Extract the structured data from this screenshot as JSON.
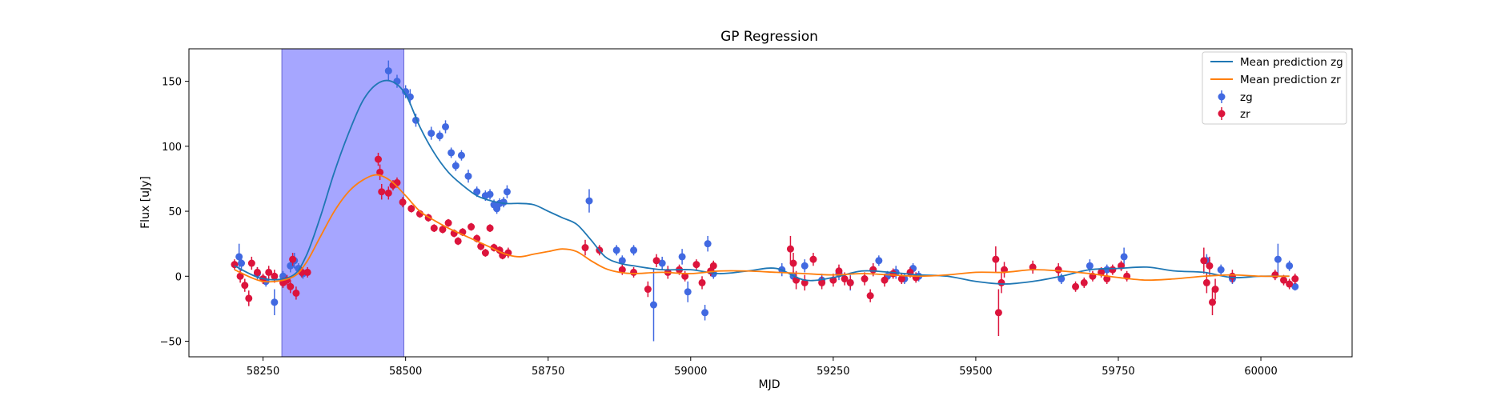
{
  "chart_data": {
    "type": "scatter",
    "title": "GP Regression",
    "xlabel": "MJD",
    "ylabel": "Flux [uJy]",
    "xlim": [
      58120,
      60160
    ],
    "ylim": [
      -62,
      175
    ],
    "xticks": [
      58250,
      58500,
      58750,
      59000,
      59250,
      59500,
      59750,
      60000
    ],
    "yticks": [
      -50,
      0,
      50,
      100,
      150
    ],
    "grid": false,
    "legend_position": "top-right",
    "shaded_region": {
      "x_range": [
        58283,
        58497
      ],
      "color": "#a6a6ff"
    },
    "series": [
      {
        "name": "Mean prediction zg",
        "kind": "line",
        "color": "#1f77b4",
        "x": [
          58200,
          58250,
          58300,
          58325,
          58350,
          58375,
          58400,
          58425,
          58450,
          58475,
          58500,
          58525,
          58550,
          58575,
          58600,
          58625,
          58650,
          58675,
          58700,
          58725,
          58750,
          58775,
          58800,
          58825,
          58850,
          58875,
          58900,
          58950,
          59000,
          59050,
          59100,
          59150,
          59200,
          59250,
          59300,
          59350,
          59400,
          59450,
          59500,
          59550,
          59600,
          59650,
          59700,
          59750,
          59800,
          59850,
          59900,
          59950,
          60000,
          60050
        ],
        "y": [
          8,
          -2,
          0,
          15,
          45,
          80,
          110,
          135,
          148,
          150,
          140,
          115,
          95,
          80,
          70,
          62,
          58,
          56,
          56,
          55,
          50,
          45,
          40,
          28,
          15,
          10,
          8,
          5,
          5,
          2,
          4,
          6,
          -3,
          -1,
          4,
          3,
          1,
          0,
          -4,
          -6,
          -4,
          0,
          5,
          6,
          7,
          4,
          3,
          -1,
          0,
          0
        ]
      },
      {
        "name": "Mean prediction zr",
        "kind": "line",
        "color": "#ff7f0e",
        "x": [
          58200,
          58250,
          58300,
          58325,
          58350,
          58375,
          58400,
          58425,
          58450,
          58475,
          58500,
          58525,
          58550,
          58575,
          58600,
          58625,
          58650,
          58675,
          58700,
          58725,
          58750,
          58775,
          58800,
          58825,
          58850,
          58875,
          58900,
          58950,
          59000,
          59050,
          59100,
          59150,
          59200,
          59250,
          59300,
          59350,
          59400,
          59450,
          59500,
          59550,
          59600,
          59650,
          59700,
          59750,
          59800,
          59850,
          59900,
          59950,
          60000,
          60050
        ],
        "y": [
          5,
          -4,
          -1,
          10,
          30,
          50,
          65,
          74,
          78,
          73,
          62,
          50,
          43,
          37,
          32,
          27,
          22,
          17,
          15,
          17,
          19,
          21,
          19,
          12,
          6,
          3,
          2,
          3,
          2,
          4,
          4,
          3,
          2,
          1,
          2,
          1,
          0,
          1,
          3,
          3,
          5,
          4,
          2,
          -1,
          -3,
          -2,
          0,
          1,
          0,
          0
        ]
      },
      {
        "name": "zg",
        "kind": "errorbar",
        "color": "#4169e1",
        "x": [
          58208,
          58212,
          58240,
          58255,
          58270,
          58285,
          58298,
          58305,
          58312,
          58320,
          58470,
          58485,
          58500,
          58508,
          58518,
          58545,
          58560,
          58570,
          58580,
          58588,
          58598,
          58610,
          58625,
          58640,
          58648,
          58655,
          58660,
          58665,
          58672,
          58678,
          58822,
          58870,
          58880,
          58900,
          58935,
          58950,
          58985,
          58995,
          59025,
          59030,
          59040,
          59160,
          59180,
          59200,
          59230,
          59260,
          59280,
          59320,
          59330,
          59345,
          59360,
          59375,
          59390,
          59400,
          59650,
          59700,
          59730,
          59760,
          59905,
          59930,
          59950,
          60030,
          60050,
          60060
        ],
        "y": [
          15,
          10,
          2,
          -4,
          -20,
          0,
          8,
          12,
          6,
          2,
          158,
          150,
          142,
          138,
          120,
          110,
          108,
          115,
          95,
          85,
          93,
          77,
          65,
          62,
          63,
          55,
          52,
          56,
          57,
          65,
          58,
          20,
          12,
          20,
          -22,
          10,
          15,
          -12,
          -28,
          25,
          2,
          5,
          0,
          8,
          -3,
          2,
          -5,
          5,
          12,
          0,
          3,
          -2,
          6,
          0,
          -2,
          8,
          5,
          15,
          12,
          5,
          -2,
          13,
          8,
          -8
        ],
        "err": [
          10,
          6,
          5,
          4,
          10,
          4,
          5,
          6,
          4,
          4,
          8,
          5,
          5,
          6,
          5,
          5,
          4,
          5,
          4,
          4,
          4,
          5,
          4,
          4,
          4,
          4,
          4,
          4,
          4,
          5,
          9,
          4,
          4,
          4,
          28,
          5,
          6,
          8,
          6,
          6,
          4,
          5,
          4,
          5,
          5,
          5,
          6,
          5,
          4,
          4,
          5,
          4,
          4,
          4,
          4,
          5,
          4,
          7,
          5,
          4,
          4,
          12,
          4,
          3
        ]
      },
      {
        "name": "zr",
        "kind": "errorbar",
        "color": "#dc143c",
        "x": [
          58200,
          58210,
          58218,
          58225,
          58230,
          58240,
          58250,
          58260,
          58270,
          58285,
          58292,
          58298,
          58302,
          58308,
          58318,
          58328,
          58452,
          58455,
          58458,
          58470,
          58478,
          58485,
          58495,
          58510,
          58525,
          58540,
          58550,
          58565,
          58575,
          58585,
          58592,
          58600,
          58615,
          58625,
          58632,
          58640,
          58648,
          58655,
          58665,
          58670,
          58680,
          58815,
          58840,
          58880,
          58900,
          58925,
          58940,
          58960,
          58980,
          58990,
          59010,
          59020,
          59035,
          59040,
          59175,
          59180,
          59185,
          59200,
          59215,
          59230,
          59250,
          59260,
          59270,
          59280,
          59305,
          59315,
          59320,
          59340,
          59355,
          59370,
          59385,
          59395,
          59535,
          59540,
          59545,
          59550,
          59600,
          59645,
          59675,
          59690,
          59705,
          59720,
          59730,
          59740,
          59755,
          59765,
          59900,
          59905,
          59910,
          59915,
          59920,
          59950,
          60025,
          60040,
          60050,
          60060
        ],
        "y": [
          9,
          0,
          -7,
          -17,
          10,
          3,
          -2,
          3,
          0,
          -5,
          -3,
          -8,
          13,
          -13,
          3,
          3,
          90,
          80,
          65,
          64,
          70,
          72,
          57,
          52,
          48,
          45,
          37,
          36,
          41,
          33,
          27,
          34,
          38,
          29,
          23,
          18,
          37,
          22,
          20,
          16,
          18,
          22,
          20,
          5,
          3,
          -10,
          12,
          3,
          5,
          0,
          9,
          -5,
          4,
          8,
          21,
          10,
          -3,
          -5,
          13,
          -5,
          -3,
          4,
          -2,
          -5,
          -2,
          -15,
          5,
          -3,
          2,
          -2,
          3,
          -1,
          13,
          -28,
          -5,
          5,
          7,
          5,
          -8,
          -5,
          0,
          3,
          -2,
          5,
          8,
          0,
          12,
          -5,
          8,
          -20,
          -10,
          0,
          1,
          -3,
          -6,
          -2
        ],
        "err": [
          4,
          5,
          5,
          6,
          5,
          4,
          4,
          5,
          5,
          4,
          4,
          5,
          5,
          5,
          4,
          4,
          5,
          6,
          6,
          5,
          4,
          4,
          4,
          3,
          3,
          3,
          3,
          3,
          3,
          3,
          3,
          3,
          3,
          3,
          3,
          3,
          3,
          3,
          3,
          3,
          4,
          6,
          4,
          4,
          4,
          6,
          5,
          5,
          4,
          4,
          4,
          5,
          4,
          4,
          10,
          8,
          7,
          6,
          5,
          5,
          5,
          5,
          5,
          5,
          5,
          5,
          5,
          5,
          4,
          4,
          4,
          4,
          10,
          18,
          8,
          6,
          5,
          5,
          4,
          4,
          4,
          4,
          4,
          4,
          4,
          4,
          10,
          8,
          7,
          10,
          8,
          5,
          4,
          4,
          4,
          4
        ]
      }
    ]
  }
}
